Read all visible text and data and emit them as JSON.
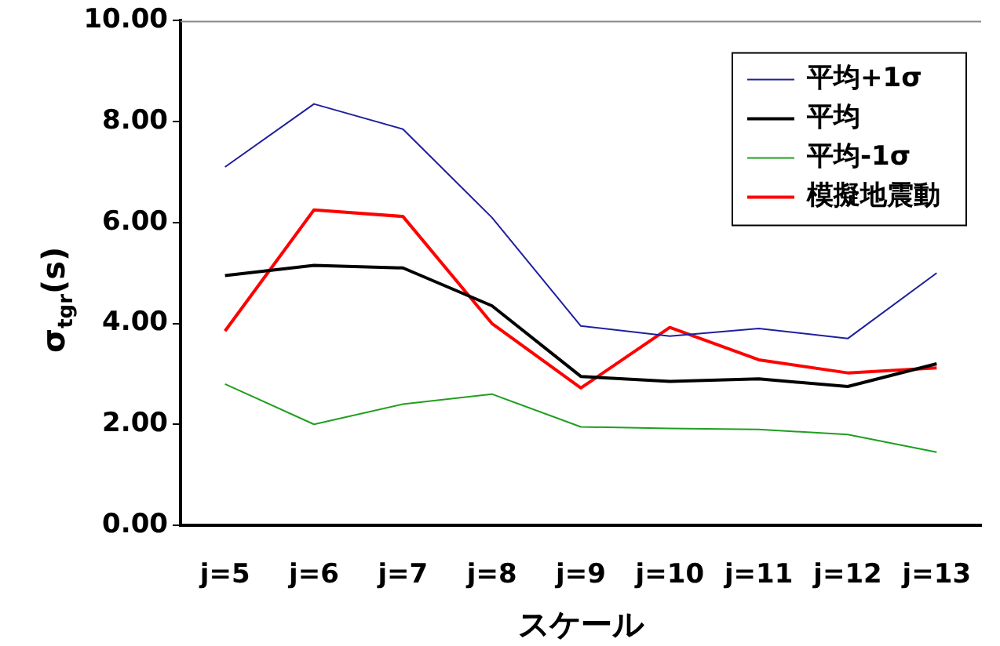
{
  "chart_data": {
    "type": "line",
    "xlabel": "スケール",
    "ylabel": "σ$_{tgr}$(s)",
    "categories": [
      "j=5",
      "j=6",
      "j=7",
      "j=8",
      "j=9",
      "j=10",
      "j=11",
      "j=12",
      "j=13"
    ],
    "series": [
      {
        "name": "平均+1σ",
        "color": "#1f1f9f",
        "values": [
          7.1,
          8.35,
          7.85,
          6.1,
          3.95,
          3.75,
          3.9,
          3.7,
          5.0
        ]
      },
      {
        "name": "平均",
        "color": "#000000",
        "values": [
          4.95,
          5.15,
          5.1,
          4.35,
          2.95,
          2.85,
          2.9,
          2.75,
          3.2
        ]
      },
      {
        "name": "平均-1σ",
        "color": "#1f9f1f",
        "values": [
          2.8,
          2.0,
          2.4,
          2.6,
          1.95,
          1.92,
          1.9,
          1.8,
          1.45
        ]
      },
      {
        "name": "模擬地震動",
        "color": "#ff0000",
        "values": [
          3.85,
          6.25,
          6.12,
          4.0,
          2.72,
          3.92,
          3.28,
          3.02,
          3.12
        ]
      }
    ],
    "ylim": [
      0,
      10
    ],
    "yticks": [
      {
        "value": 0,
        "label": "0.00"
      },
      {
        "value": 2,
        "label": "2.00"
      },
      {
        "value": 4,
        "label": "4.00"
      },
      {
        "value": 6,
        "label": "6.00"
      },
      {
        "value": 8,
        "label": "8.00"
      },
      {
        "value": 10,
        "label": "10.00"
      }
    ],
    "grid": false,
    "legend": "top right",
    "marker": "none",
    "line_style": "solid"
  }
}
